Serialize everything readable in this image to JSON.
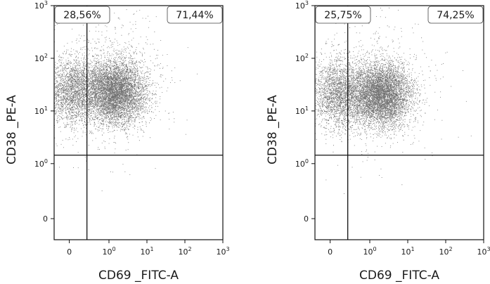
{
  "chart_data": [
    {
      "type": "scatter",
      "title": "",
      "xlabel": "CD69 _FITC-A",
      "ylabel": "CD38 _PE-A",
      "x_ticks": [
        {
          "base": "0",
          "exp": ""
        },
        {
          "base": "10",
          "exp": "0"
        },
        {
          "base": "10",
          "exp": "1"
        },
        {
          "base": "10",
          "exp": "2"
        },
        {
          "base": "10",
          "exp": "3"
        }
      ],
      "y_ticks": [
        {
          "base": "0",
          "exp": ""
        },
        {
          "base": "10",
          "exp": "0"
        },
        {
          "base": "10",
          "exp": "1"
        },
        {
          "base": "10",
          "exp": "2"
        },
        {
          "base": "10",
          "exp": "3"
        }
      ],
      "x_scale": "biexponential",
      "y_scale": "biexponential",
      "xlim": [
        -0.6,
        3.0
      ],
      "ylim": [
        -0.6,
        3.0
      ],
      "gate": {
        "x": 0.1,
        "y": 0.7
      },
      "population_center": {
        "x": 0.55,
        "y": 1.7
      },
      "quadrants": [
        {
          "position": "top-left",
          "label": "28,56%",
          "value": 28.56
        },
        {
          "position": "top-right",
          "label": "71,44%",
          "value": 71.44
        }
      ],
      "grid": false
    },
    {
      "type": "scatter",
      "title": "",
      "xlabel": "CD69 _FITC-A",
      "ylabel": "CD38 _PE-A",
      "x_ticks": [
        {
          "base": "0",
          "exp": ""
        },
        {
          "base": "10",
          "exp": "0"
        },
        {
          "base": "10",
          "exp": "1"
        },
        {
          "base": "10",
          "exp": "2"
        },
        {
          "base": "10",
          "exp": "3"
        }
      ],
      "y_ticks": [
        {
          "base": "0",
          "exp": ""
        },
        {
          "base": "10",
          "exp": "0"
        },
        {
          "base": "10",
          "exp": "1"
        },
        {
          "base": "10",
          "exp": "2"
        },
        {
          "base": "10",
          "exp": "3"
        }
      ],
      "x_scale": "biexponential",
      "y_scale": "biexponential",
      "xlim": [
        -0.6,
        3.0
      ],
      "ylim": [
        -0.6,
        3.0
      ],
      "gate": {
        "x": 0.1,
        "y": 0.7
      },
      "population_center": {
        "x": 0.65,
        "y": 1.65
      },
      "quadrants": [
        {
          "position": "top-left",
          "label": "25,75%",
          "value": 25.75
        },
        {
          "position": "top-right",
          "label": "74,25%",
          "value": 74.25
        }
      ],
      "grid": false
    }
  ]
}
